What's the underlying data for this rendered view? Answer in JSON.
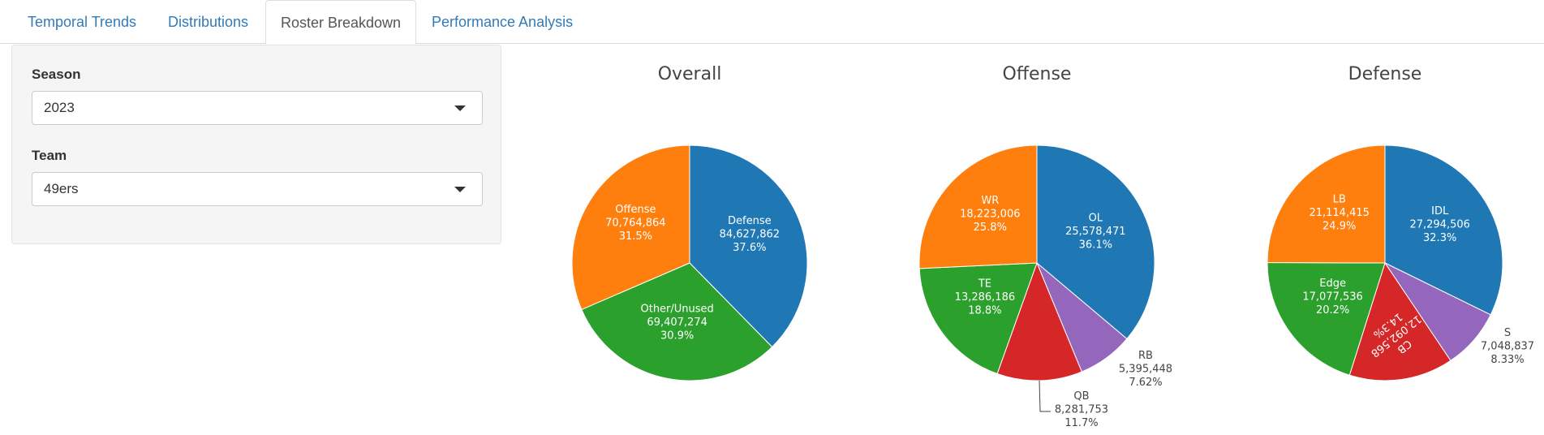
{
  "tabs": [
    {
      "label": "Temporal Trends",
      "active": false
    },
    {
      "label": "Distributions",
      "active": false
    },
    {
      "label": "Roster Breakdown",
      "active": true
    },
    {
      "label": "Performance Analysis",
      "active": false
    }
  ],
  "sidebar": {
    "season": {
      "label": "Season",
      "value": "2023"
    },
    "team": {
      "label": "Team",
      "value": "49ers"
    }
  },
  "chart_data": [
    {
      "type": "pie",
      "title": "Overall",
      "slices": [
        {
          "label": "Defense",
          "value": 84627862,
          "value_text": "84,627,862",
          "percent_text": "37.6%",
          "color": "#1f77b4",
          "label_position": "inside"
        },
        {
          "label": "Other/Unused",
          "value": 69407274,
          "value_text": "69,407,274",
          "percent_text": "30.9%",
          "color": "#2ca02c",
          "label_position": "inside"
        },
        {
          "label": "Offense",
          "value": 70764864,
          "value_text": "70,764,864",
          "percent_text": "31.5%",
          "color": "#ff7f0e",
          "label_position": "inside"
        }
      ]
    },
    {
      "type": "pie",
      "title": "Offense",
      "slices": [
        {
          "label": "OL",
          "value": 25578471,
          "value_text": "25,578,471",
          "percent_text": "36.1%",
          "color": "#1f77b4",
          "label_position": "inside"
        },
        {
          "label": "RB",
          "value": 5395448,
          "value_text": "5,395,448",
          "percent_text": "7.62%",
          "color": "#9467bd",
          "label_position": "outside"
        },
        {
          "label": "QB",
          "value": 8281753,
          "value_text": "8,281,753",
          "percent_text": "11.7%",
          "color": "#d62728",
          "label_position": "outside"
        },
        {
          "label": "TE",
          "value": 13286186,
          "value_text": "13,286,186",
          "percent_text": "18.8%",
          "color": "#2ca02c",
          "label_position": "inside"
        },
        {
          "label": "WR",
          "value": 18223006,
          "value_text": "18,223,006",
          "percent_text": "25.8%",
          "color": "#ff7f0e",
          "label_position": "inside"
        }
      ]
    },
    {
      "type": "pie",
      "title": "Defense",
      "slices": [
        {
          "label": "IDL",
          "value": 27294506,
          "value_text": "27,294,506",
          "percent_text": "32.3%",
          "color": "#1f77b4",
          "label_position": "inside"
        },
        {
          "label": "S",
          "value": 7048837,
          "value_text": "7,048,837",
          "percent_text": "8.33%",
          "color": "#9467bd",
          "label_position": "outside"
        },
        {
          "label": "CB",
          "value": 12092568,
          "value_text": "12,092,568",
          "percent_text": "14.3%",
          "color": "#d62728",
          "label_position": "rotated"
        },
        {
          "label": "Edge",
          "value": 17077536,
          "value_text": "17,077,536",
          "percent_text": "20.2%",
          "color": "#2ca02c",
          "label_position": "inside"
        },
        {
          "label": "LB",
          "value": 21114415,
          "value_text": "21,114,415",
          "percent_text": "24.9%",
          "color": "#ff7f0e",
          "label_position": "inside"
        }
      ]
    }
  ]
}
